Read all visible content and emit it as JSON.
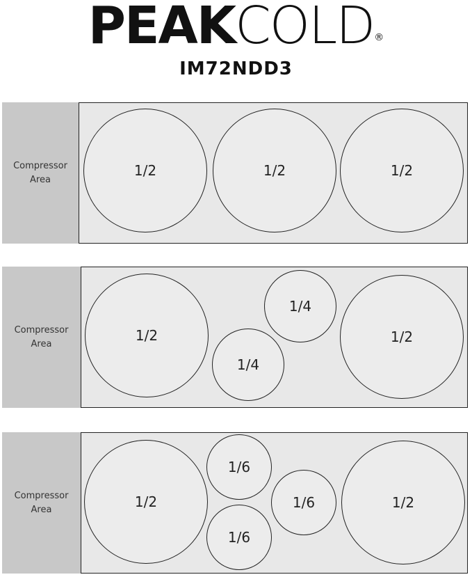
{
  "header": {
    "brand_bold": "PEAK",
    "brand_light": "COLD",
    "brand_mark": "®",
    "model": "IM72NDD3"
  },
  "layouts": [
    {
      "compressor": "Compressor Area",
      "pans": [
        "1/2",
        "1/2",
        "1/2"
      ]
    },
    {
      "compressor": "Compressor Area",
      "pans": [
        "1/2",
        "1/4",
        "1/4",
        "1/2"
      ]
    },
    {
      "compressor": "Compressor Area",
      "pans": [
        "1/2",
        "1/6",
        "1/6",
        "1/6",
        "1/2"
      ]
    }
  ]
}
